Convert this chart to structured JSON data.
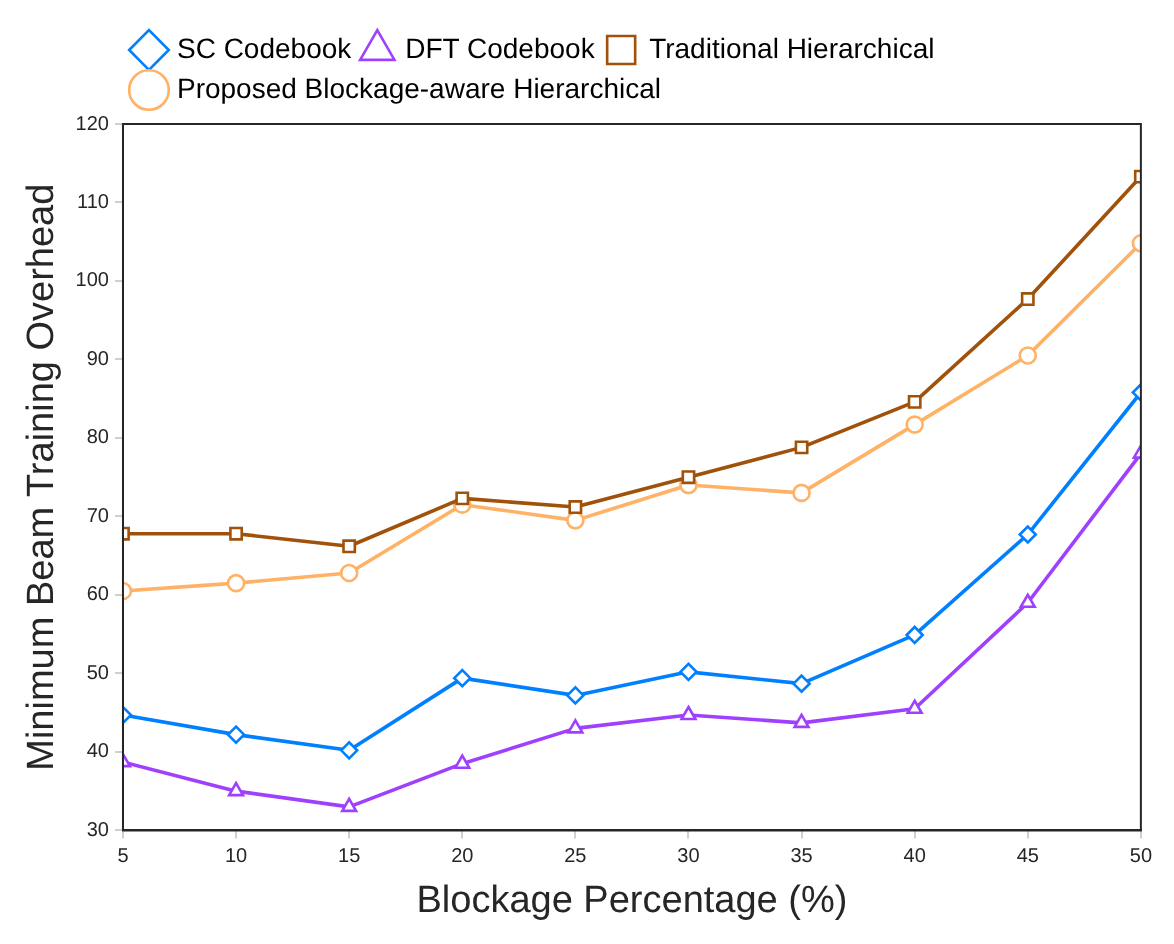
{
  "chart_data": {
    "type": "line",
    "xlabel": "Blockage Percentage (%)",
    "ylabel": "Minimum Beam Training Overhead",
    "x": [
      5,
      10,
      15,
      20,
      25,
      30,
      35,
      40,
      45,
      50
    ],
    "series": [
      {
        "name": "Proposed Blockage-aware Hierarchical",
        "color": "#ffb266",
        "marker": "circle",
        "values": [
          60.5,
          61.5,
          62.8,
          71.5,
          69.5,
          74,
          73,
          81.7,
          90.5,
          104.8
        ]
      },
      {
        "name": "Traditional Hierarchical",
        "color": "#a0520a",
        "marker": "square",
        "values": [
          67.8,
          67.8,
          66.2,
          72.3,
          71.2,
          75,
          78.8,
          84.6,
          97.7,
          113.3
        ]
      },
      {
        "name": "DFT Codebook",
        "color": "#a040ff",
        "marker": "triangle",
        "values": [
          38.7,
          35,
          33,
          38.5,
          43,
          44.7,
          43.7,
          45.5,
          59,
          78
        ]
      },
      {
        "name": "SC Codebook",
        "color": "#0080ff",
        "marker": "diamond",
        "values": [
          44.7,
          42.2,
          40.2,
          49.4,
          47.2,
          50.2,
          48.7,
          54.9,
          67.7,
          85.8
        ]
      }
    ],
    "xlim": [
      5,
      50
    ],
    "xticks": [
      5,
      10,
      15,
      20,
      25,
      30,
      35,
      40,
      45,
      50
    ],
    "ylim": [
      30,
      120
    ],
    "yticks": [
      30,
      40,
      50,
      60,
      70,
      80,
      90,
      100,
      110,
      120
    ],
    "grid": false,
    "legend": "top left",
    "line_style": "solid"
  }
}
